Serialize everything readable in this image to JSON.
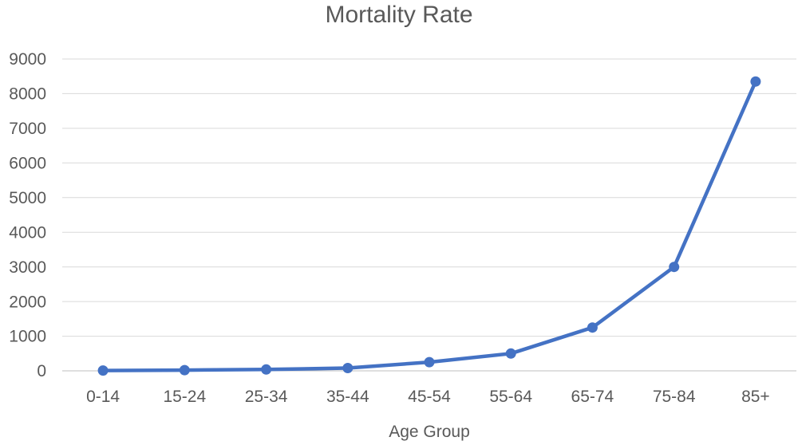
{
  "chart_data": {
    "type": "line",
    "title": "Mortality Rate",
    "xlabel": "Age Group",
    "ylabel": "",
    "categories": [
      "0-14",
      "15-24",
      "25-34",
      "35-44",
      "45-54",
      "55-64",
      "65-74",
      "75-84",
      "85+"
    ],
    "values": [
      10,
      20,
      40,
      80,
      250,
      500,
      1250,
      3000,
      8350
    ],
    "ylim": [
      0,
      9000
    ],
    "ytick_interval": 1000,
    "ytick_labels": [
      "0",
      "1000",
      "2000",
      "3000",
      "4000",
      "5000",
      "6000",
      "7000",
      "8000",
      "9000"
    ],
    "grid": true,
    "legend": false,
    "colors": {
      "line": "#4472C4",
      "marker": "#4472C4",
      "text": "#595959",
      "gridline": "#D9D9D9",
      "axis_line": "#BFBFBF",
      "background": "#FFFFFF"
    }
  }
}
